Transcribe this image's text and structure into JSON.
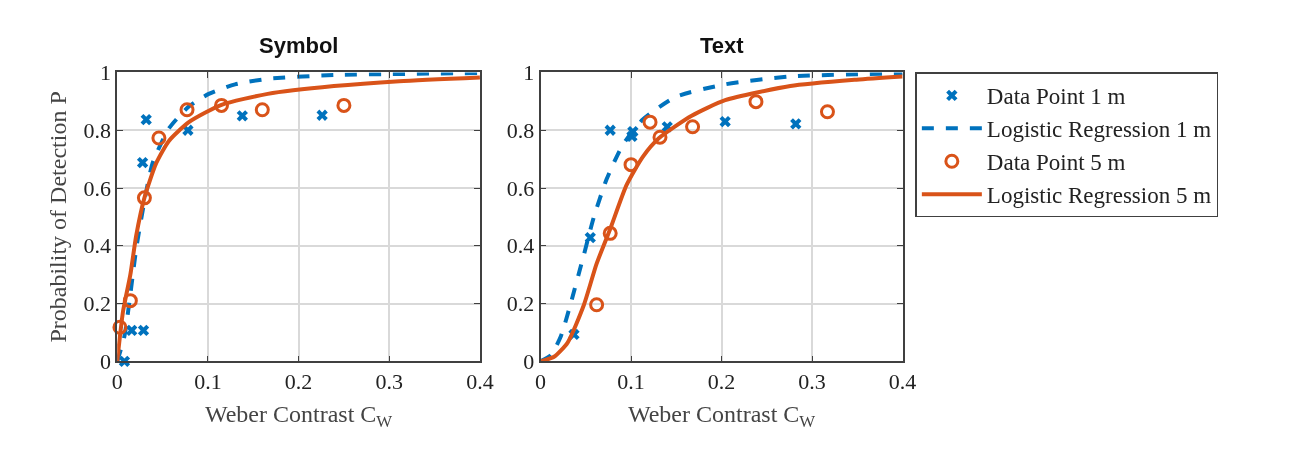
{
  "chart_data": [
    {
      "type": "scatter",
      "title": "Symbol",
      "xlabel": "Weber Contrast C$_{W}$",
      "ylabel": "Probability of Detection P",
      "xlim": [
        0,
        0.4
      ],
      "xticks": [
        0,
        0.1,
        0.2,
        0.3,
        0.4
      ],
      "ylim": [
        0,
        1
      ],
      "yticks": [
        0,
        0.2,
        0.4,
        0.6,
        0.8,
        1
      ],
      "grid": true,
      "legend": false,
      "series": [
        {
          "marker": "cross",
          "color": "#0072bd",
          "x": [
            0.008,
            0.016,
            0.029,
            0.028,
            0.032,
            0.078,
            0.138,
            0.226
          ],
          "values": [
            0.0,
            0.107,
            0.107,
            0.688,
            0.837,
            0.8,
            0.85,
            0.852
          ]
        },
        {
          "type": "line",
          "line_style": "dashed",
          "color": "#0072bd",
          "x": [
            0,
            0.008,
            0.021,
            0.03,
            0.039,
            0.057,
            0.079,
            0.101,
            0.13,
            0.166,
            0.239,
            0.4
          ],
          "values": [
            0,
            0.087,
            0.39,
            0.555,
            0.686,
            0.806,
            0.882,
            0.926,
            0.959,
            0.978,
            0.991,
            0.998
          ]
        },
        {
          "marker": "circle",
          "color": "#d95319",
          "x": [
            0.003,
            0.0145,
            0.03,
            0.046,
            0.077,
            0.115,
            0.16,
            0.25
          ],
          "values": [
            0.118,
            0.21,
            0.566,
            0.773,
            0.871,
            0.886,
            0.871,
            0.886
          ]
        },
        {
          "type": "line",
          "line_style": "solid",
          "color": "#d95319",
          "x": [
            0,
            0.0065,
            0.0145,
            0.021,
            0.03,
            0.043,
            0.057,
            0.079,
            0.115,
            0.166,
            0.239,
            0.311,
            0.4
          ],
          "values": [
            0,
            0.174,
            0.3,
            0.436,
            0.566,
            0.686,
            0.763,
            0.828,
            0.888,
            0.926,
            0.953,
            0.97,
            0.983
          ]
        }
      ]
    },
    {
      "type": "scatter",
      "title": "Text",
      "xlabel": "Weber Contrast C$_{W}$",
      "xlim": [
        0,
        0.4
      ],
      "xticks": [
        0,
        0.1,
        0.2,
        0.3,
        0.4
      ],
      "ylim": [
        0,
        1
      ],
      "yticks": [
        0,
        0.2,
        0.4,
        0.6,
        0.8,
        1
      ],
      "grid": true,
      "legend": "right",
      "series": [
        {
          "name": "Data Point 1 m",
          "marker": "cross",
          "color": "#0072bd",
          "x": [
            0.037,
            0.055,
            0.077,
            0.102,
            0.101,
            0.14,
            0.204,
            0.282
          ],
          "values": [
            0.093,
            0.428,
            0.8,
            0.795,
            0.779,
            0.812,
            0.83,
            0.822
          ]
        },
        {
          "name": "Logistic Regression 1 m",
          "type": "line",
          "line_style": "dashed",
          "color": "#0072bd",
          "x": [
            0,
            0.0116,
            0.0225,
            0.033,
            0.048,
            0.059,
            0.073,
            0.091,
            0.113,
            0.149,
            0.204,
            0.276,
            0.4
          ],
          "values": [
            0,
            0.022,
            0.087,
            0.196,
            0.37,
            0.5,
            0.63,
            0.75,
            0.837,
            0.915,
            0.959,
            0.986,
            0.997
          ]
        },
        {
          "name": "Data Point 5 m",
          "marker": "circle",
          "color": "#d95319",
          "x": [
            0.062,
            0.077,
            0.1,
            0.121,
            0.132,
            0.168,
            0.238,
            0.317
          ],
          "values": [
            0.196,
            0.443,
            0.681,
            0.828,
            0.776,
            0.812,
            0.899,
            0.864
          ]
        },
        {
          "name": "Logistic Regression 5 m",
          "type": "line",
          "line_style": "solid",
          "color": "#d95319",
          "x": [
            0,
            0.015,
            0.03,
            0.048,
            0.062,
            0.077,
            0.095,
            0.113,
            0.131,
            0.167,
            0.204,
            0.276,
            0.349,
            0.4
          ],
          "values": [
            0,
            0.016,
            0.065,
            0.196,
            0.338,
            0.458,
            0.61,
            0.708,
            0.773,
            0.85,
            0.904,
            0.953,
            0.975,
            0.986
          ]
        }
      ]
    }
  ]
}
